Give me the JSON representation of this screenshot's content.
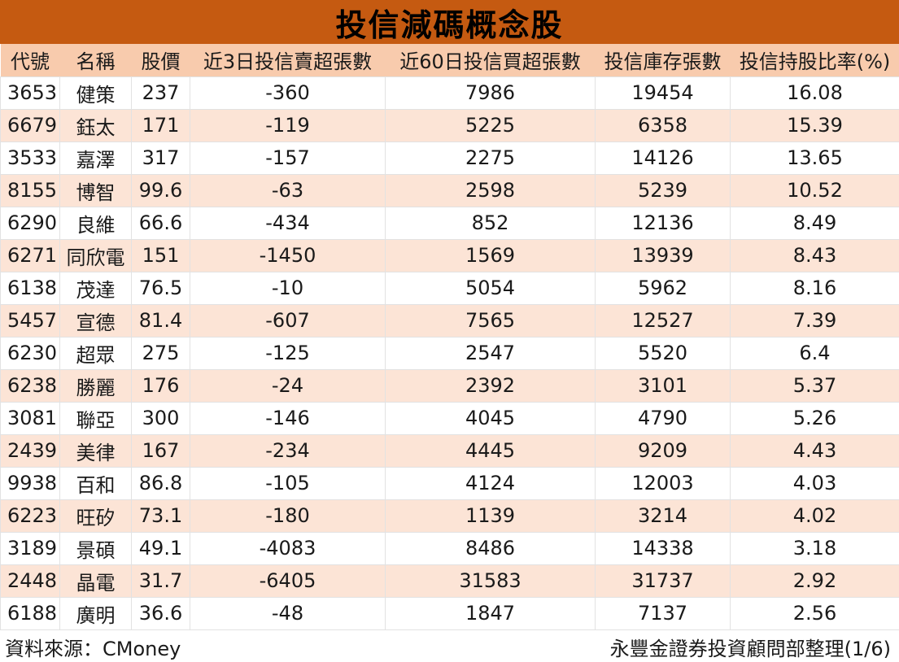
{
  "title": "投信減碼概念股",
  "columns": [
    "代號",
    "名稱",
    "股價",
    "近3日投信賣超張數",
    "近60日投信買超張數",
    "投信庫存張數",
    "投信持股比率(%)"
  ],
  "rows": [
    [
      "3653",
      "健策",
      "237",
      "-360",
      "7986",
      "19454",
      "16.08"
    ],
    [
      "6679",
      "鈺太",
      "171",
      "-119",
      "5225",
      "6358",
      "15.39"
    ],
    [
      "3533",
      "嘉澤",
      "317",
      "-157",
      "2275",
      "14126",
      "13.65"
    ],
    [
      "8155",
      "博智",
      "99.6",
      "-63",
      "2598",
      "5239",
      "10.52"
    ],
    [
      "6290",
      "良維",
      "66.6",
      "-434",
      "852",
      "12136",
      "8.49"
    ],
    [
      "6271",
      "同欣電",
      "151",
      "-1450",
      "1569",
      "13939",
      "8.43"
    ],
    [
      "6138",
      "茂達",
      "76.5",
      "-10",
      "5054",
      "5962",
      "8.16"
    ],
    [
      "5457",
      "宣德",
      "81.4",
      "-607",
      "7565",
      "12527",
      "7.39"
    ],
    [
      "6230",
      "超眾",
      "275",
      "-125",
      "2547",
      "5520",
      "6.4"
    ],
    [
      "6238",
      "勝麗",
      "176",
      "-24",
      "2392",
      "3101",
      "5.37"
    ],
    [
      "3081",
      "聯亞",
      "300",
      "-146",
      "4045",
      "4790",
      "5.26"
    ],
    [
      "2439",
      "美律",
      "167",
      "-234",
      "4445",
      "9209",
      "4.43"
    ],
    [
      "9938",
      "百和",
      "86.8",
      "-105",
      "4124",
      "12003",
      "4.03"
    ],
    [
      "6223",
      "旺矽",
      "73.1",
      "-180",
      "1139",
      "3214",
      "4.02"
    ],
    [
      "3189",
      "景碩",
      "49.1",
      "-4083",
      "8486",
      "14338",
      "3.18"
    ],
    [
      "2448",
      "晶電",
      "31.7",
      "-6405",
      "31583",
      "31737",
      "2.92"
    ],
    [
      "6188",
      "廣明",
      "36.6",
      "-48",
      "1847",
      "7137",
      "2.56"
    ]
  ],
  "footer": {
    "source": "資料來源：CMoney",
    "organization": "永豐金證券投資顧問部整理(1/6)"
  },
  "colors": {
    "title_bg": "#c55a11",
    "header_bg": "#f8cbad",
    "stripe_bg": "#fce4d6"
  }
}
